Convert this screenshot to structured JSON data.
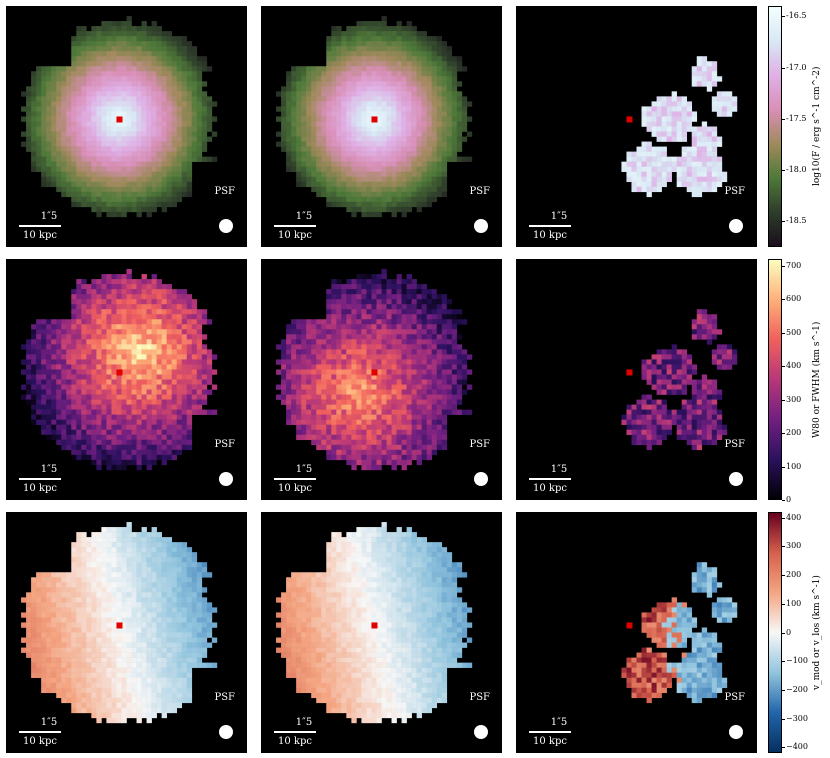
{
  "chart_data": {
    "type": "heatmap",
    "grid": {
      "rows": 3,
      "columns": 3
    },
    "psf_label": "PSF",
    "scalebar": {
      "angular": "1″5",
      "physical": "10 kpc"
    },
    "rows": [
      {
        "quantity": "flux",
        "colorbar_label": "log10(F / erg s^-1 cm^-2)",
        "colormap": "cubehelix-like",
        "colorbar_range": [
          -18.75,
          -16.4
        ],
        "colorbar_ticks": [
          "-16.5",
          "-17.0",
          "-17.5",
          "-18.0",
          "-18.5"
        ],
        "colorbar_tick_values": [
          -16.5,
          -17.0,
          -17.5,
          -18.0,
          -18.5
        ]
      },
      {
        "quantity": "width",
        "colorbar_label": "W80 or FWHM (km s^-1)",
        "colormap": "magma",
        "colorbar_range": [
          0,
          720
        ],
        "colorbar_ticks": [
          "700",
          "600",
          "500",
          "400",
          "300",
          "200",
          "100",
          "0"
        ],
        "colorbar_tick_values": [
          700,
          600,
          500,
          400,
          300,
          200,
          100,
          0
        ]
      },
      {
        "quantity": "velocity",
        "colorbar_label": "v_mod or v_los (km s^-1)",
        "colormap": "RdBu_r",
        "colorbar_range": [
          -420,
          420
        ],
        "colorbar_ticks": [
          "400",
          "300",
          "200",
          "100",
          "0",
          "−100",
          "−200",
          "−300",
          "−400"
        ],
        "colorbar_tick_values": [
          400,
          300,
          200,
          100,
          0,
          -100,
          -200,
          -300,
          -400
        ]
      }
    ],
    "colors": {
      "flux": [
        "#1a0f1e",
        "#2e3d2a",
        "#4f7a3a",
        "#a08a5c",
        "#d98fb7",
        "#e0b0e6",
        "#d8e8f4",
        "#f2ffff"
      ],
      "width": [
        "#000004",
        "#2c115f",
        "#721f81",
        "#b73779",
        "#f1605d",
        "#feb078",
        "#fcfdbf"
      ],
      "velocity": [
        "#053061",
        "#2166ac",
        "#92c5de",
        "#f7f7f7",
        "#f4a582",
        "#d6604d",
        "#67001f"
      ]
    }
  }
}
